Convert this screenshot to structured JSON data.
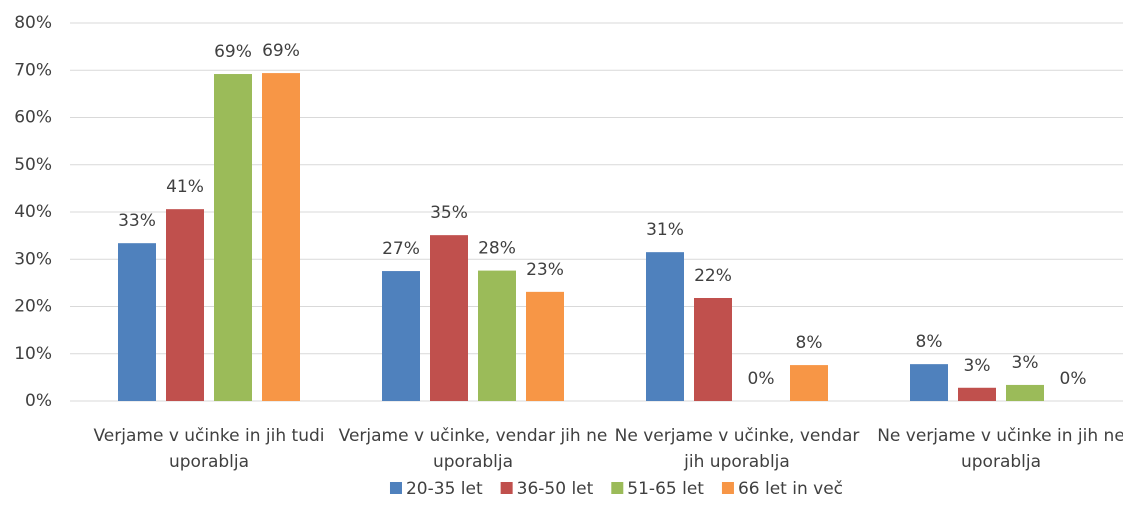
{
  "chart_data": {
    "type": "bar",
    "categories": [
      "Verjame v učinke in jih tudi uporablja",
      "Verjame v učinke, vendar jih ne uporablja",
      "Ne verjame v učinke, vendar jih uporablja",
      "Ne verjame v učinke in jih ne uporablja"
    ],
    "series": [
      {
        "name": "20-35 let",
        "color": "#4f81bd",
        "values": [
          33.4,
          27.5,
          31.5,
          7.8
        ],
        "value_labels": [
          "33%",
          "27%",
          "31%",
          "8%"
        ]
      },
      {
        "name": "36-50 let",
        "color": "#c0504d",
        "values": [
          40.6,
          35.1,
          21.8,
          2.8
        ],
        "value_labels": [
          "41%",
          "35%",
          "22%",
          "3%"
        ]
      },
      {
        "name": "51-65 let",
        "color": "#9bbb59",
        "values": [
          69.2,
          27.6,
          0,
          3.4
        ],
        "value_labels": [
          "69%",
          "28%",
          "0%",
          "3%"
        ]
      },
      {
        "name": "66 let in več",
        "color": "#f79646",
        "values": [
          69.4,
          23.1,
          7.6,
          0
        ],
        "value_labels": [
          "69%",
          "23%",
          "8%",
          "0%"
        ]
      }
    ],
    "ylim": [
      0,
      80
    ],
    "yticks": [
      {
        "value": 0,
        "label": "0%"
      },
      {
        "value": 10,
        "label": "10%"
      },
      {
        "value": 20,
        "label": "20%"
      },
      {
        "value": 30,
        "label": "30%"
      },
      {
        "value": 40,
        "label": "40%"
      },
      {
        "value": 50,
        "label": "50%"
      },
      {
        "value": 60,
        "label": "60%"
      },
      {
        "value": 70,
        "label": "70%"
      },
      {
        "value": 80,
        "label": "80%"
      }
    ],
    "grid": true,
    "legend": "bottom"
  }
}
